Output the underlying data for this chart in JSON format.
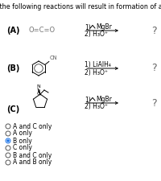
{
  "title": "Which of the following reactions will result in formation of an amine?",
  "background_color": "#ffffff",
  "options": [
    "A and C only",
    "A only",
    "B only",
    "C only",
    "B and C only",
    "A and B only"
  ],
  "selected_option": 2,
  "row_labels": [
    "(A)",
    "(B)",
    "(C)"
  ],
  "row_A_molecule": "O=C=O",
  "reagent_1_AC": "MgBr",
  "reagent_1_B": "LiAlH₄",
  "reagent_2": "H₃O⁺",
  "question_mark": "?",
  "title_fontsize": 5.8,
  "label_fontsize": 7.0,
  "text_fontsize": 5.5,
  "option_fontsize": 5.5
}
